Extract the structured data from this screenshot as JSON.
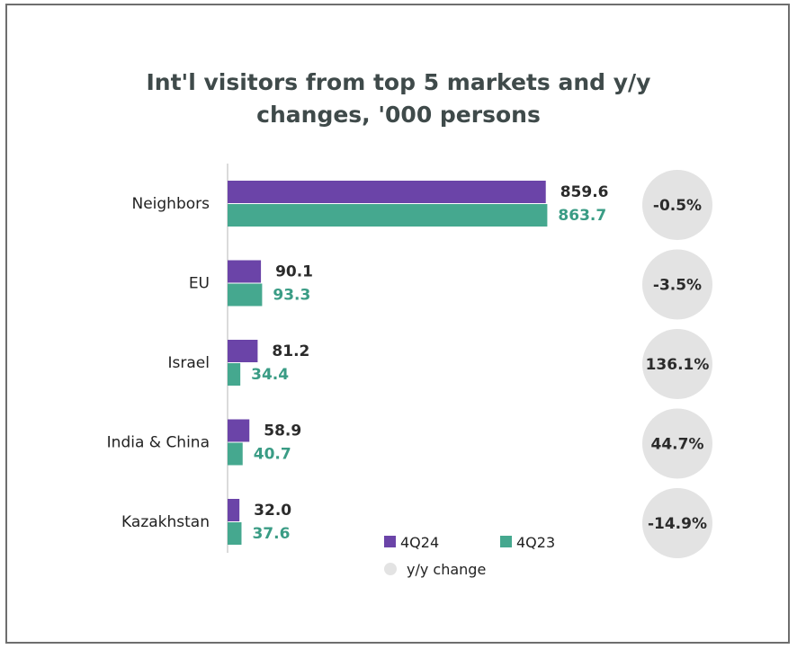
{
  "chart_data": {
    "type": "bar",
    "orientation": "horizontal",
    "title_lines": [
      "Int'l visitors from top 5 markets and y/y",
      "changes, '000 persons"
    ],
    "categories": [
      "Neighbors",
      "EU",
      "Israel",
      "India & China",
      "Kazakhstan"
    ],
    "series": [
      {
        "name": "4Q24",
        "color": "#6b44a8",
        "values": [
          859.6,
          90.1,
          81.2,
          58.9,
          32.0
        ],
        "labels": [
          "859.6",
          "90.1",
          "81.2",
          "58.9",
          "32.0"
        ]
      },
      {
        "name": "4Q23",
        "color": "#45a88f",
        "values": [
          863.7,
          93.3,
          34.4,
          40.7,
          37.6
        ],
        "labels": [
          "863.7",
          "93.3",
          "34.4",
          "40.7",
          "37.6"
        ]
      }
    ],
    "yy_change": {
      "name": "y/y change",
      "color": "#e3e3e3",
      "labels": [
        "-0.5%",
        "-3.5%",
        "136.1%",
        "44.7%",
        "-14.9%"
      ]
    },
    "xlim": [
      0,
      880
    ]
  }
}
